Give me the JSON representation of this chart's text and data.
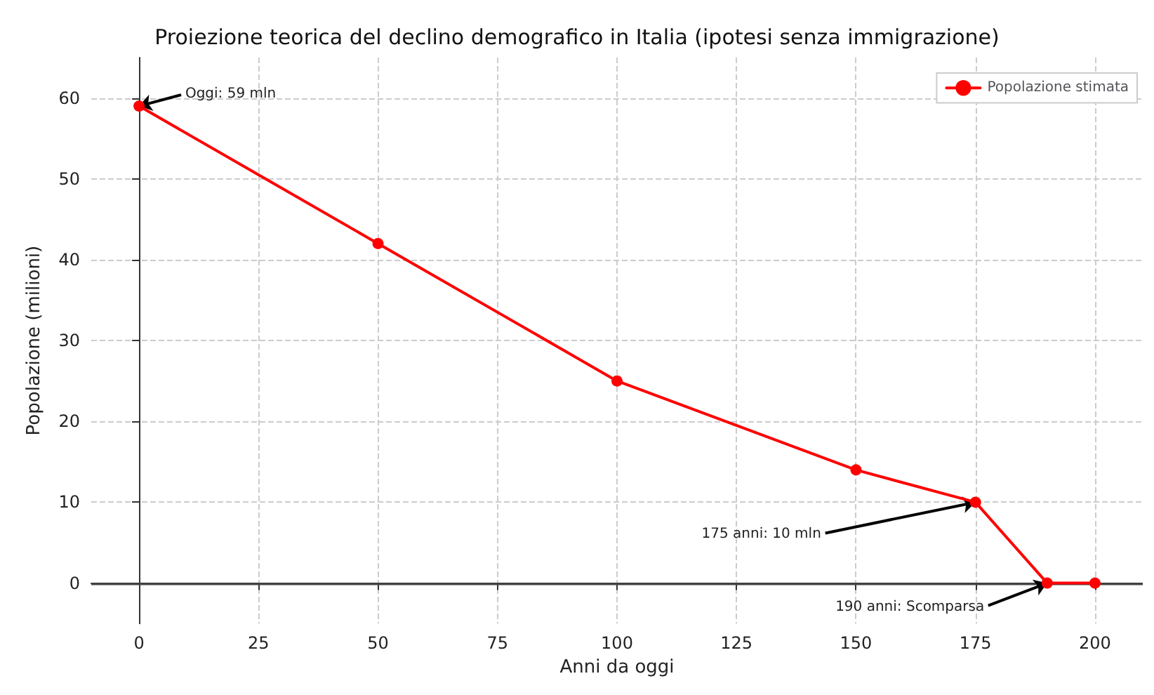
{
  "chart_data": {
    "type": "line",
    "title": "Proiezione teorica del declino demografico in Italia (ipotesi senza immigrazione)",
    "xlabel": "Anni da oggi",
    "ylabel": "Popolazione (milioni)",
    "x": [
      0,
      50,
      100,
      150,
      175,
      190,
      200
    ],
    "series": [
      {
        "name": "Popolazione stimata",
        "color": "#ff0000",
        "values": [
          59,
          42,
          25,
          14,
          10,
          0,
          0
        ]
      }
    ],
    "xlim": [
      -10,
      210
    ],
    "ylim": [
      -5,
      65
    ],
    "xticks": [
      0,
      25,
      50,
      75,
      100,
      125,
      150,
      175,
      200
    ],
    "yticks": [
      0,
      10,
      20,
      30,
      40,
      50,
      60
    ],
    "ref_lines": [
      {
        "axis": "y",
        "value": 0,
        "color": "#444444"
      }
    ],
    "annotations": [
      {
        "text": "Oggi: 59 mln",
        "x": 0,
        "y": 59
      },
      {
        "text": "175 anni: 10 mln",
        "x": 175,
        "y": 10
      },
      {
        "text": "190 anni: Scomparsa",
        "x": 190,
        "y": 0
      }
    ],
    "grid": true,
    "legend": "top right",
    "marker": "circle",
    "line_style": "solid"
  }
}
